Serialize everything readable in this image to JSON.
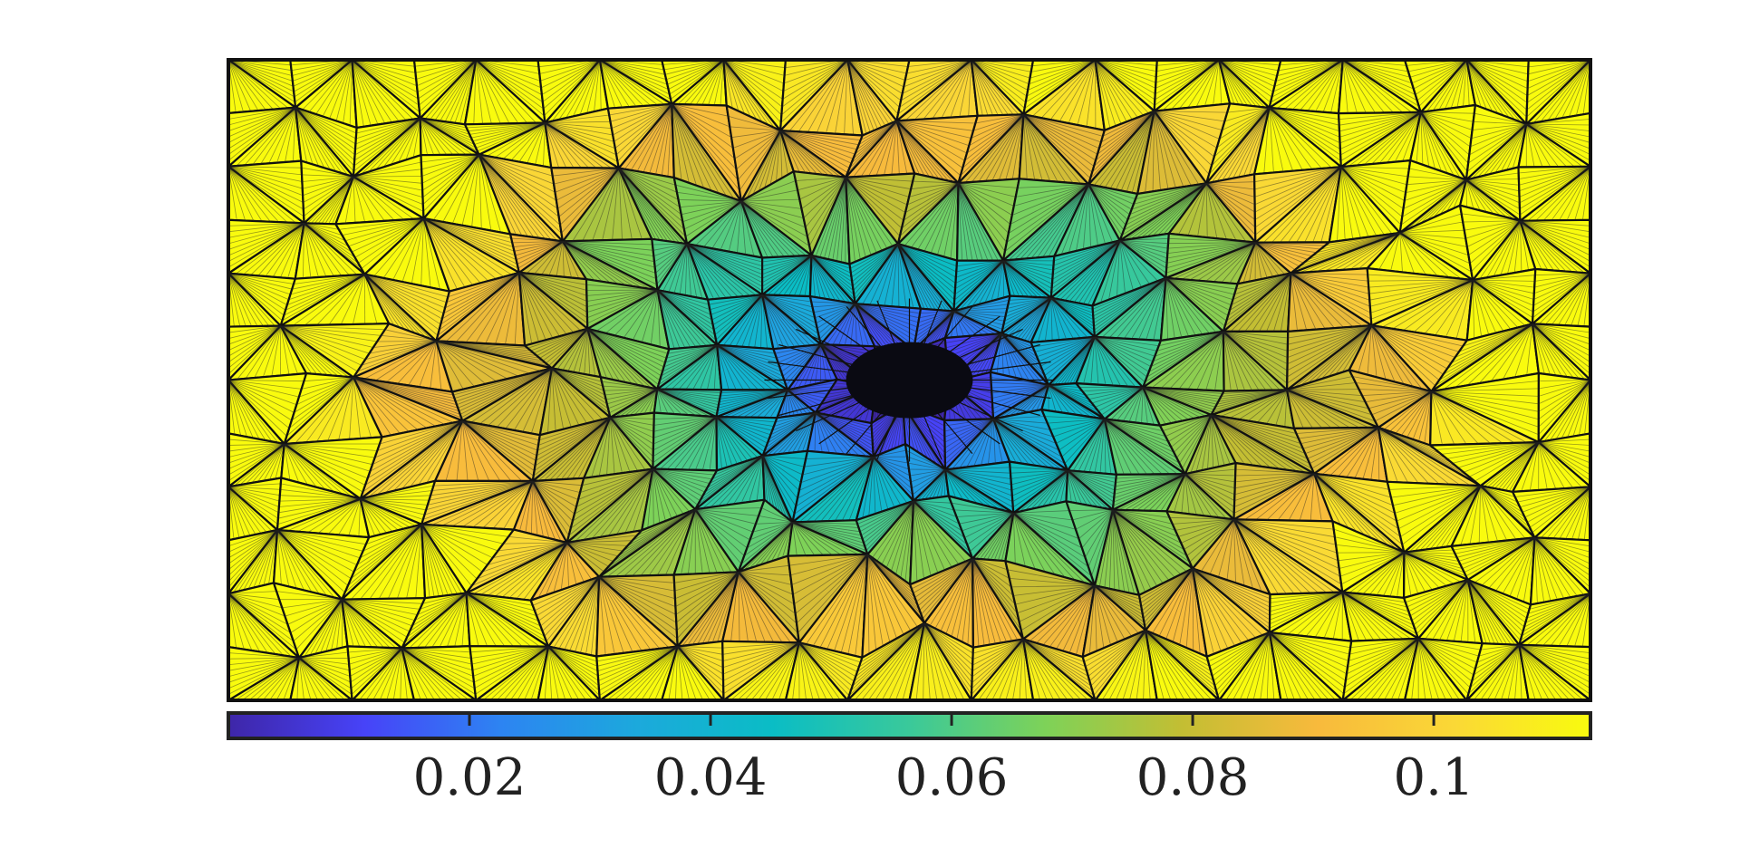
{
  "chart_data": {
    "type": "heatmap",
    "title": "",
    "xlabel": "",
    "ylabel": "",
    "mesh": "triangular",
    "colormap": "parula",
    "colormap_stops": [
      "#3e26a8",
      "#4743f8",
      "#2d84f2",
      "#1ca9dc",
      "#0abdc5",
      "#3ac99a",
      "#7ed258",
      "#c3be33",
      "#f8ba3c",
      "#fad836",
      "#f9fb0e"
    ],
    "field_description": "",
    "field_min": 0.0,
    "field_max": 0.113,
    "minimum_location": [
      0.5,
      0.5
    ],
    "colorbar": {
      "position": "bottom",
      "range": [
        0.0,
        0.113
      ],
      "ticks": [
        0.02,
        0.04,
        0.06,
        0.08,
        0.1
      ],
      "tick_labels": [
        "0.02",
        "0.04",
        "0.06",
        "0.08",
        "0.1"
      ]
    }
  }
}
